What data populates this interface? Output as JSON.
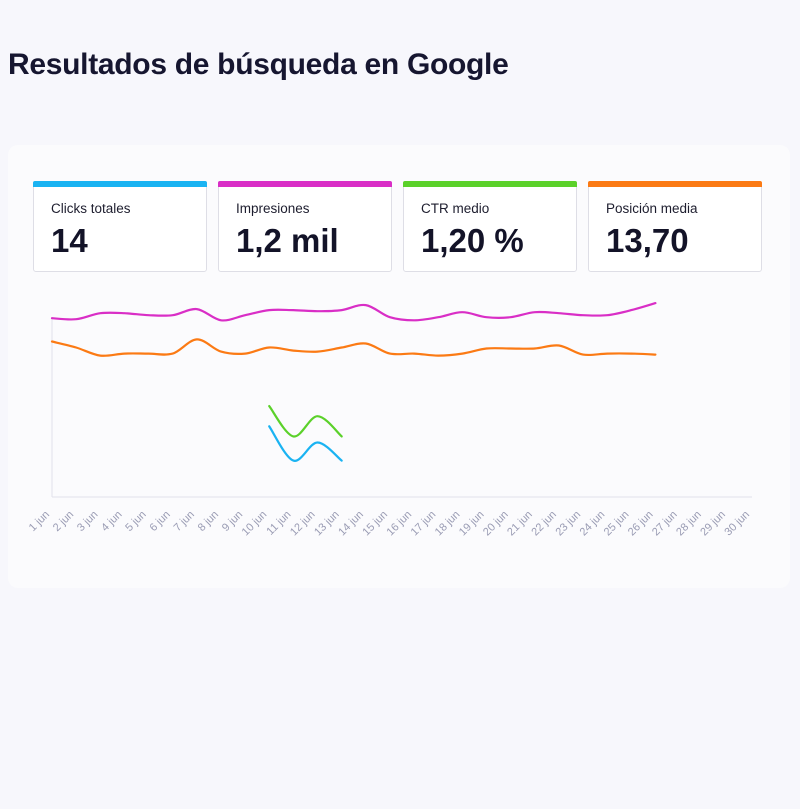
{
  "page": {
    "title": "Resultados de búsqueda en Google"
  },
  "kpis": [
    {
      "label": "Clicks totales",
      "value": "14",
      "color": "#1ab3f2"
    },
    {
      "label": "Impresiones",
      "value": "1,2 mil",
      "color": "#d92ec6"
    },
    {
      "label": "CTR medio",
      "value": "1,20 %",
      "color": "#5bd12a"
    },
    {
      "label": "Posición media",
      "value": "13,70",
      "color": "#fb7a14"
    }
  ],
  "chart_data": {
    "type": "line",
    "title": "",
    "xlabel": "",
    "ylabel": "",
    "grid": false,
    "legend": "none",
    "x": [
      "1 jun",
      "2 jun",
      "3 jun",
      "4 jun",
      "5 jun",
      "6 jun",
      "7 jun",
      "8 jun",
      "9 jun",
      "10 jun",
      "11 jun",
      "12 jun",
      "13 jun",
      "14 jun",
      "15 jun",
      "16 jun",
      "17 jun",
      "18 jun",
      "19 jun",
      "20 jun",
      "21 jun",
      "22 jun",
      "23 jun",
      "24 jun",
      "25 jun",
      "26 jun",
      "27 jun",
      "28 jun",
      "29 jun",
      "30 jun"
    ],
    "ylim": [
      0,
      100
    ],
    "series": [
      {
        "color": "#d92ec6",
        "values": [
          88.5,
          88,
          91,
          91,
          90,
          90,
          93,
          87.5,
          90,
          92.5,
          92.5,
          92,
          92.5,
          95,
          89,
          87.5,
          89,
          91.5,
          89,
          89,
          91.5,
          91,
          90,
          90,
          92.5,
          96,
          null,
          null,
          null,
          null
        ]
      },
      {
        "color": "#fb7a14",
        "values": [
          77,
          74,
          70,
          71,
          71,
          71,
          78,
          72,
          71,
          74,
          72.5,
          72,
          74,
          76,
          71,
          71,
          70,
          71,
          73.5,
          73.5,
          73.5,
          75,
          70.5,
          71,
          71,
          70.5,
          null,
          null,
          null,
          null
        ]
      },
      {
        "color": "#5bd12a",
        "values": [
          null,
          null,
          null,
          null,
          null,
          null,
          null,
          null,
          null,
          45,
          30,
          40,
          30,
          null,
          null,
          null,
          null,
          null,
          null,
          null,
          null,
          null,
          null,
          null,
          null,
          null,
          null,
          null,
          null,
          null
        ]
      },
      {
        "color": "#1ab3f2",
        "values": [
          null,
          null,
          null,
          null,
          null,
          null,
          null,
          null,
          null,
          35,
          18,
          27,
          18,
          null,
          null,
          null,
          null,
          null,
          null,
          null,
          null,
          null,
          null,
          null,
          null,
          null,
          null,
          null,
          null,
          null
        ]
      }
    ]
  }
}
